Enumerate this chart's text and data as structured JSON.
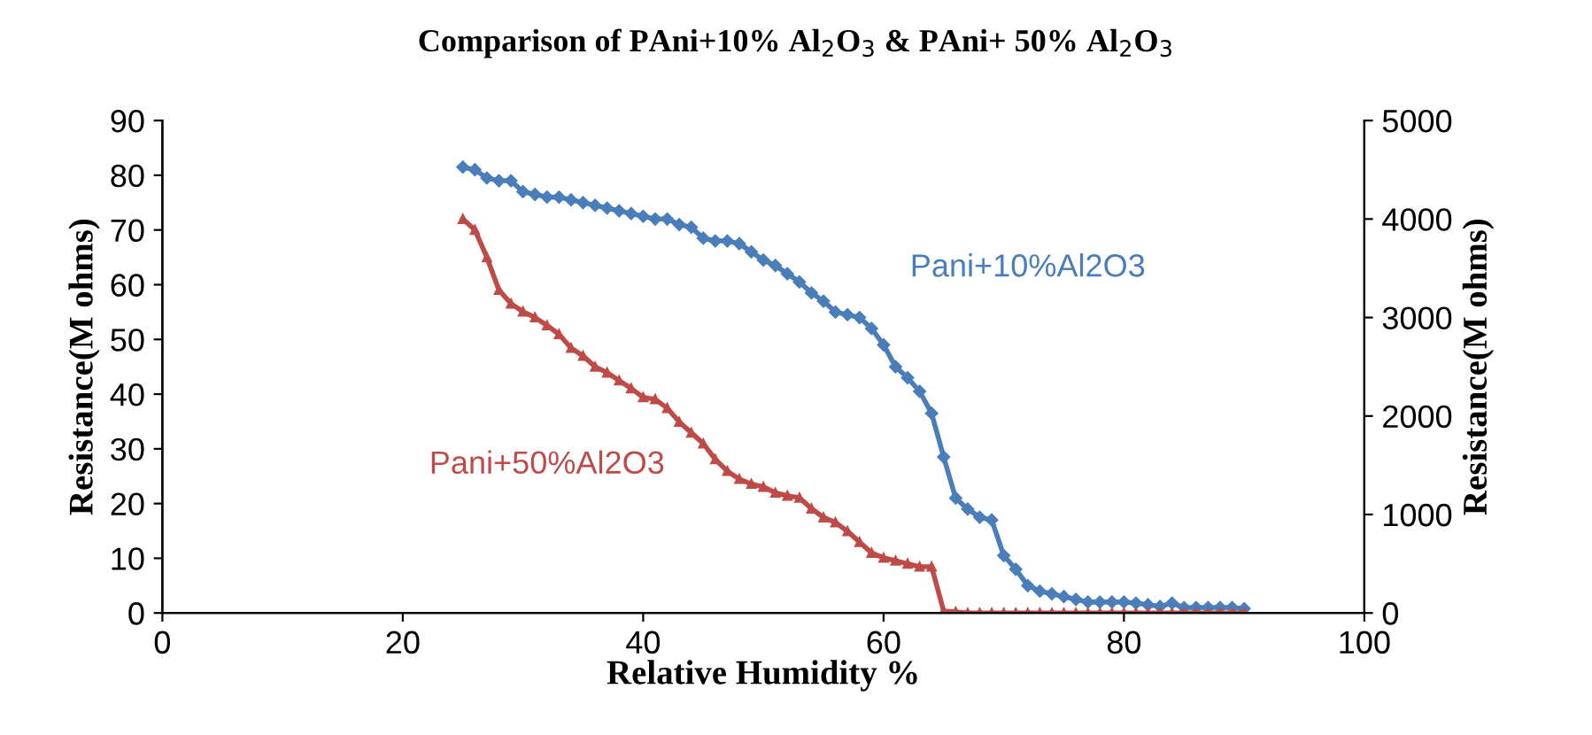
{
  "chart_data": {
    "type": "line",
    "title": "Comparison of PAni+10% Al$_{2}$O$_{3}$ & PAni+ 50% Al$_{2}$O$_{3}$",
    "xlabel": "Relative Humidity %",
    "ylabel": "Resistance(M ohms)",
    "y2label": "Resistance(M ohms)",
    "xlim": [
      0,
      100
    ],
    "xticks": [
      0,
      20,
      40,
      60,
      80,
      100
    ],
    "ylim": [
      0,
      90
    ],
    "yticks": [
      0,
      10,
      20,
      30,
      40,
      50,
      60,
      70,
      80,
      90
    ],
    "y2lim": [
      0,
      5000
    ],
    "y2ticks": [
      0,
      1000,
      2000,
      3000,
      4000,
      5000
    ],
    "grid": false,
    "legend": false,
    "series": [
      {
        "name": "Pani+10%Al2O3",
        "color": "#4a7ebb",
        "marker": "diamond",
        "x": [
          25,
          26,
          27,
          28,
          29,
          30,
          31,
          32,
          33,
          34,
          35,
          36,
          37,
          38,
          39,
          40,
          41,
          42,
          43,
          44,
          45,
          46,
          47,
          48,
          49,
          50,
          51,
          52,
          53,
          54,
          55,
          56,
          57,
          58,
          59,
          60,
          61,
          62,
          63,
          64,
          65,
          66,
          67,
          68,
          69,
          70,
          71,
          72,
          73,
          74,
          75,
          76,
          77,
          78,
          79,
          80,
          81,
          82,
          83,
          84,
          85,
          86,
          87,
          88,
          89,
          90
        ],
        "values": [
          81.5,
          81,
          79.5,
          79,
          79,
          77,
          76.5,
          76,
          76,
          75.5,
          75,
          74.5,
          74,
          73.5,
          73,
          72.5,
          72,
          72,
          71,
          70.5,
          68.5,
          68,
          68,
          67.5,
          66,
          64.5,
          63.5,
          62,
          60.5,
          58.5,
          57,
          55,
          54.5,
          54,
          52,
          49,
          45,
          43,
          40.5,
          36.5,
          28.5,
          21,
          19,
          17.5,
          17,
          10.5,
          8,
          5,
          4,
          3.5,
          3,
          2.5,
          2,
          2,
          2,
          2,
          1.8,
          1.5,
          1.2,
          1.8,
          1,
          1,
          1,
          1,
          1,
          0.8
        ]
      },
      {
        "name": "Pani+50%Al2O3",
        "color": "#be4b48",
        "marker": "triangle",
        "axis": "y2",
        "x": [
          25,
          26,
          27,
          28,
          29,
          30,
          31,
          32,
          33,
          34,
          35,
          36,
          37,
          38,
          39,
          40,
          41,
          42,
          43,
          44,
          45,
          46,
          47,
          48,
          49,
          50,
          51,
          52,
          53,
          54,
          55,
          56,
          57,
          58,
          59,
          60,
          61,
          62,
          63,
          64,
          65,
          66,
          67,
          68,
          69,
          70,
          71,
          72,
          73,
          74,
          75,
          76,
          77,
          78,
          79,
          80,
          81,
          82,
          83,
          84,
          85,
          86,
          87,
          88,
          89,
          90
        ],
        "values": [
          4000,
          3890,
          3610,
          3280,
          3140,
          3060,
          3000,
          2920,
          2830,
          2690,
          2610,
          2500,
          2440,
          2360,
          2280,
          2190,
          2170,
          2080,
          1940,
          1830,
          1720,
          1560,
          1440,
          1360,
          1310,
          1280,
          1220,
          1190,
          1170,
          1060,
          970,
          920,
          830,
          720,
          610,
          560,
          530,
          500,
          470,
          470,
          20,
          10,
          0,
          0,
          0,
          0,
          0,
          0,
          0,
          0,
          0,
          0,
          0,
          0,
          0,
          0,
          0,
          0,
          0,
          0,
          0,
          0,
          0,
          0,
          0,
          0
        ]
      }
    ]
  }
}
